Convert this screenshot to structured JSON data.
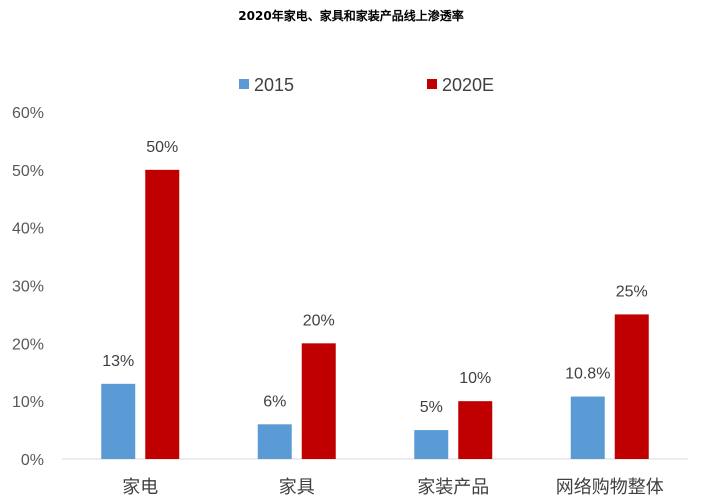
{
  "chart_data": {
    "type": "bar",
    "title": "2020年家电、家具和家装产品线上渗透率",
    "categories": [
      "家电",
      "家具",
      "家装产品",
      "网络购物整体"
    ],
    "series": [
      {
        "name": "2015",
        "color": "#5B9BD5",
        "values": [
          13,
          6,
          5,
          10.8
        ],
        "labels": [
          "13%",
          "6%",
          "5%",
          "10.8%"
        ]
      },
      {
        "name": "2020E",
        "color": "#C00000",
        "values": [
          50,
          20,
          10,
          25
        ],
        "labels": [
          "50%",
          "20%",
          "10%",
          "25%"
        ]
      }
    ],
    "yticks": [
      "0%",
      "10%",
      "20%",
      "30%",
      "40%",
      "50%",
      "60%"
    ],
    "ylim": [
      0,
      60
    ],
    "grid": false,
    "legend_position": "top-center"
  }
}
